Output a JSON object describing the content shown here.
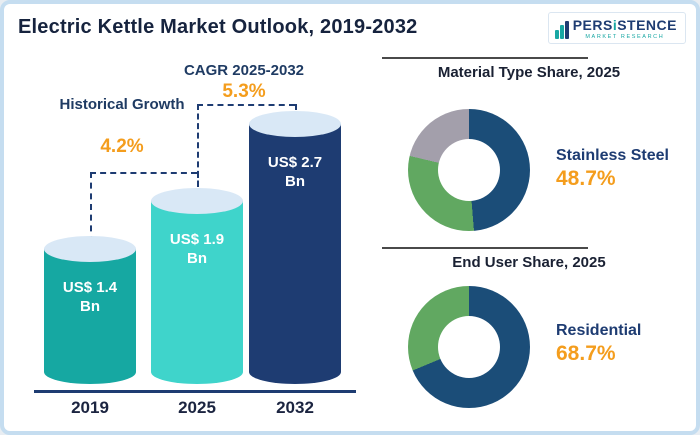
{
  "header": {
    "title": "Electric Kettle Market Outlook, 2019-2032",
    "logo": {
      "part1": "PERS",
      "accent": "i",
      "part2": "STENCE",
      "subtitle": "MARKET RESEARCH"
    }
  },
  "bar_section": {
    "historical": {
      "label": "Historical Growth",
      "value": "4.2%"
    },
    "cagr": {
      "label": "CAGR 2025-2032",
      "value": "5.3%"
    },
    "bars": [
      {
        "year": "2019",
        "value": "US$ 1.4 Bn"
      },
      {
        "year": "2025",
        "value": "US$ 1.9 Bn"
      },
      {
        "year": "2032",
        "value": "US$ 2.7 Bn"
      }
    ]
  },
  "donut_sections": [
    {
      "title": "Material Type Share, 2025",
      "label": "Stainless Steel",
      "value": "48.7%"
    },
    {
      "title": "End User Share, 2025",
      "label": "Residential",
      "value": "68.7%"
    }
  ],
  "chart_data": [
    {
      "type": "bar",
      "title": "Electric Kettle Market Outlook, 2019-2032",
      "categories": [
        "2019",
        "2025",
        "2032"
      ],
      "values": [
        1.4,
        1.9,
        2.7
      ],
      "unit": "US$ Bn",
      "ylim": [
        0,
        2.7
      ],
      "colors": [
        "#16a8a2",
        "#3fd4cb",
        "#1e3c72"
      ],
      "annotations": [
        {
          "label": "Historical Growth",
          "value": "4.2%",
          "applies_to": "2019-2025"
        },
        {
          "label": "CAGR 2025-2032",
          "value": "5.3%",
          "applies_to": "2025-2032"
        }
      ]
    },
    {
      "type": "pie",
      "title": "Material Type Share, 2025",
      "labels": [
        "Stainless Steel",
        "Other segment (green)",
        "Other segment (gray)"
      ],
      "values": [
        48.7,
        30.0,
        21.3
      ],
      "colors": [
        "#1b4d78",
        "#61a861",
        "#a39fab"
      ],
      "highlight": {
        "label": "Stainless Steel",
        "value": "48.7%"
      }
    },
    {
      "type": "pie",
      "title": "End User Share, 2025",
      "labels": [
        "Residential",
        "Other segment (green)"
      ],
      "values": [
        68.7,
        31.3
      ],
      "colors": [
        "#1b4d78",
        "#61a861"
      ],
      "highlight": {
        "label": "Residential",
        "value": "68.7%"
      }
    }
  ]
}
